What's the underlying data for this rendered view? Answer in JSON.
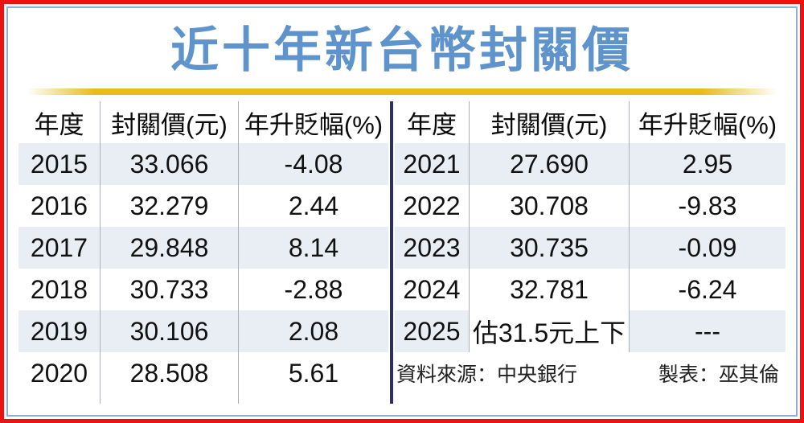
{
  "title": "近十年新台幣封關價",
  "colors": {
    "frame_red": "#ee1111",
    "inner_border_blue": "#8fb1cf",
    "title_blue": "#5e93cc",
    "underline_gold": "#e5bd1a",
    "mid_divider_navy": "#2d2d70",
    "row_shade": "#e9eef5"
  },
  "left_table": {
    "headers": [
      "年度",
      "封關價(元)",
      "年升貶幅(%)"
    ],
    "rows": [
      [
        "2015",
        "33.066",
        "-4.08"
      ],
      [
        "2016",
        "32.279",
        "2.44"
      ],
      [
        "2017",
        "29.848",
        "8.14"
      ],
      [
        "2018",
        "30.733",
        "-2.88"
      ],
      [
        "2019",
        "30.106",
        "2.08"
      ],
      [
        "2020",
        "28.508",
        "5.61"
      ]
    ]
  },
  "right_table": {
    "headers": [
      "年度",
      "封關價(元)",
      "年升貶幅(%)"
    ],
    "rows": [
      [
        "2021",
        "27.690",
        "2.95"
      ],
      [
        "2022",
        "30.708",
        "-9.83"
      ],
      [
        "2023",
        "30.735",
        "-0.09"
      ],
      [
        "2024",
        "32.781",
        "-6.24"
      ],
      [
        "2025",
        "估31.5元上下",
        "---"
      ]
    ]
  },
  "footer": {
    "source": "資料來源：中央銀行",
    "credit": "製表：巫其倫"
  },
  "chart_data": {
    "type": "table",
    "title": "近十年新台幣封關價",
    "columns": [
      "年度",
      "封關價(元)",
      "年升貶幅(%)"
    ],
    "rows": [
      [
        "2015",
        "33.066",
        "-4.08"
      ],
      [
        "2016",
        "32.279",
        "2.44"
      ],
      [
        "2017",
        "29.848",
        "8.14"
      ],
      [
        "2018",
        "30.733",
        "-2.88"
      ],
      [
        "2019",
        "30.106",
        "2.08"
      ],
      [
        "2020",
        "28.508",
        "5.61"
      ],
      [
        "2021",
        "27.690",
        "2.95"
      ],
      [
        "2022",
        "30.708",
        "-9.83"
      ],
      [
        "2023",
        "30.735",
        "-0.09"
      ],
      [
        "2024",
        "32.781",
        "-6.24"
      ],
      [
        "2025",
        "估31.5元上下",
        "---"
      ]
    ],
    "source": "資料來源：中央銀行",
    "credit": "製表：巫其倫"
  }
}
